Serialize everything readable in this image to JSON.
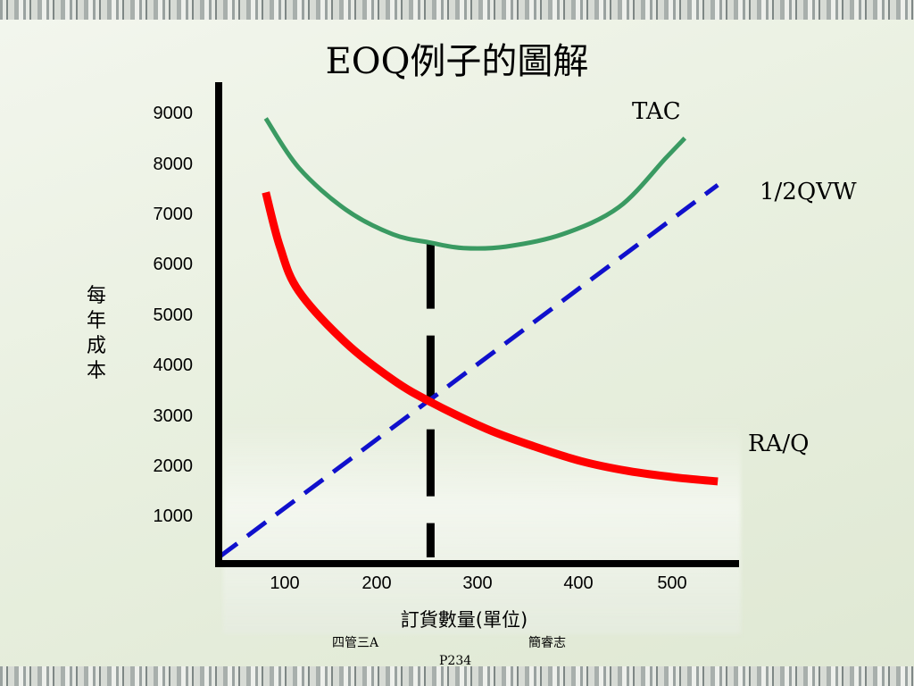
{
  "chart_data": {
    "type": "line",
    "title": "EOQ例子的圖解",
    "xlabel": "訂貨數量(單位)",
    "ylabel": "每年成本",
    "x_ticks": [
      "100",
      "200",
      "300",
      "400",
      "500"
    ],
    "y_ticks": [
      "1000",
      "2000",
      "3000",
      "4000",
      "5000",
      "6000",
      "7000",
      "8000",
      "9000"
    ],
    "xlim": [
      15,
      560
    ],
    "ylim": [
      0,
      9000
    ],
    "series": [
      {
        "name": "TAC",
        "color": "#3a9a62",
        "style": "solid",
        "points": [
          [
            65,
            8900
          ],
          [
            100,
            7900
          ],
          [
            150,
            7050
          ],
          [
            200,
            6550
          ],
          [
            240,
            6380
          ],
          [
            275,
            6270
          ],
          [
            320,
            6300
          ],
          [
            380,
            6550
          ],
          [
            440,
            7100
          ],
          [
            490,
            8100
          ],
          [
            510,
            8500
          ]
        ]
      },
      {
        "name": "1/2QVW",
        "color": "#1010cc",
        "style": "dashed",
        "points": [
          [
            15,
            0
          ],
          [
            545,
            7550
          ]
        ]
      },
      {
        "name": "RA/Q",
        "color": "#ff0000",
        "style": "solid",
        "points": [
          [
            65,
            7400
          ],
          [
            80,
            6300
          ],
          [
            100,
            5400
          ],
          [
            150,
            4350
          ],
          [
            200,
            3600
          ],
          [
            240,
            3150
          ],
          [
            300,
            2600
          ],
          [
            350,
            2250
          ],
          [
            400,
            1950
          ],
          [
            450,
            1750
          ],
          [
            500,
            1620
          ],
          [
            545,
            1540
          ]
        ]
      }
    ],
    "reference_lines": [
      {
        "type": "vertical",
        "x": 240,
        "color": "#000000",
        "style": "dashed",
        "y_range": [
          0,
          6400
        ]
      }
    ]
  },
  "footer": {
    "left": "四管三A",
    "right": "簡睿志",
    "page": "P234"
  }
}
